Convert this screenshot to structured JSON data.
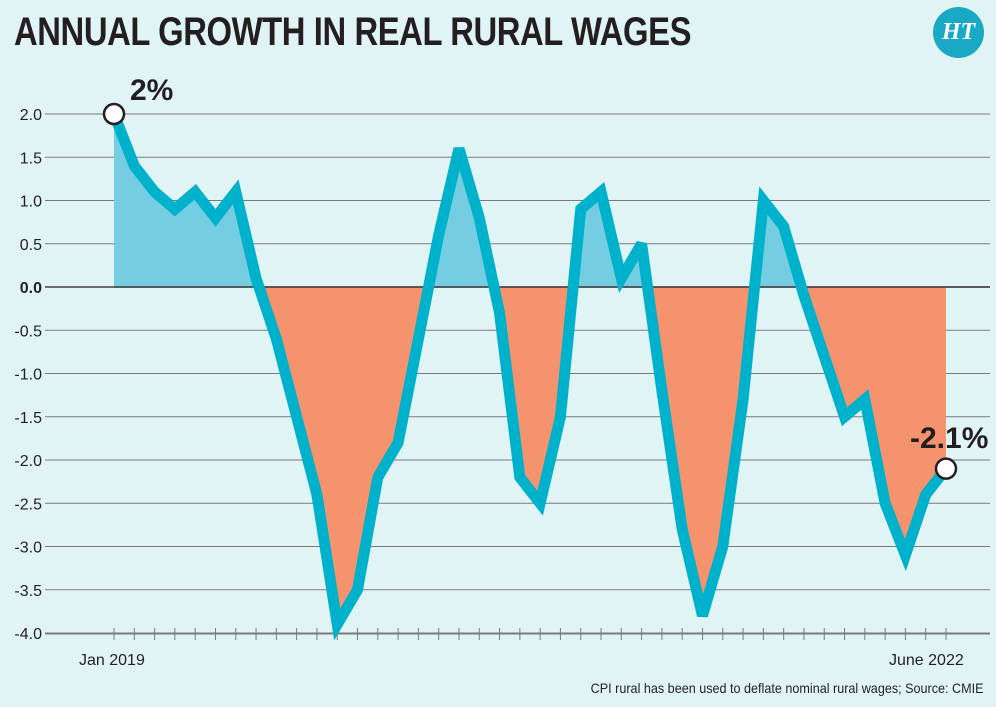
{
  "header": {
    "title": "ANNUAL GROWTH IN REAL RURAL WAGES",
    "logo_text": "HT"
  },
  "footer": {
    "source": "CPI rural has been used to deflate nominal rural wages; Source: CMIE"
  },
  "colors": {
    "background": "#e1f4f5",
    "line": "#00b1cc",
    "positive_fill": "#74cde0",
    "negative_fill": "#f4936e",
    "logo": "#19a9c4"
  },
  "chart_data": {
    "type": "area",
    "title": "ANNUAL GROWTH IN REAL RURAL WAGES",
    "xlabel": "",
    "ylabel": "",
    "x_start": "Jan 2019",
    "x_end": "June 2022",
    "frequency": "monthly",
    "x_tick_labels": [
      "Jan 2019",
      "June 2022"
    ],
    "ylim": [
      -4.0,
      2.0
    ],
    "y_ticks": [
      "2.0",
      "1.5",
      "1.0",
      "0.5",
      "0.0",
      "-0.5",
      "-1.0",
      "-1.5",
      "-2.0",
      "-2.5",
      "-3.0",
      "-3.5",
      "-4.0"
    ],
    "grid": true,
    "values": [
      2.0,
      1.4,
      1.1,
      0.9,
      1.1,
      0.8,
      1.1,
      0.1,
      -0.6,
      -1.5,
      -2.4,
      -3.9,
      -3.5,
      -2.2,
      -1.8,
      -0.6,
      0.6,
      1.6,
      0.8,
      -0.3,
      -2.2,
      -2.5,
      -1.5,
      0.9,
      1.1,
      0.1,
      0.5,
      -1.2,
      -2.8,
      -3.8,
      -3.0,
      -1.3,
      1.0,
      0.7,
      -0.1,
      -0.8,
      -1.5,
      -1.3,
      -2.5,
      -3.1,
      -2.4,
      -2.1
    ],
    "annotations": {
      "first": "2%",
      "last": "-2.1%"
    }
  }
}
